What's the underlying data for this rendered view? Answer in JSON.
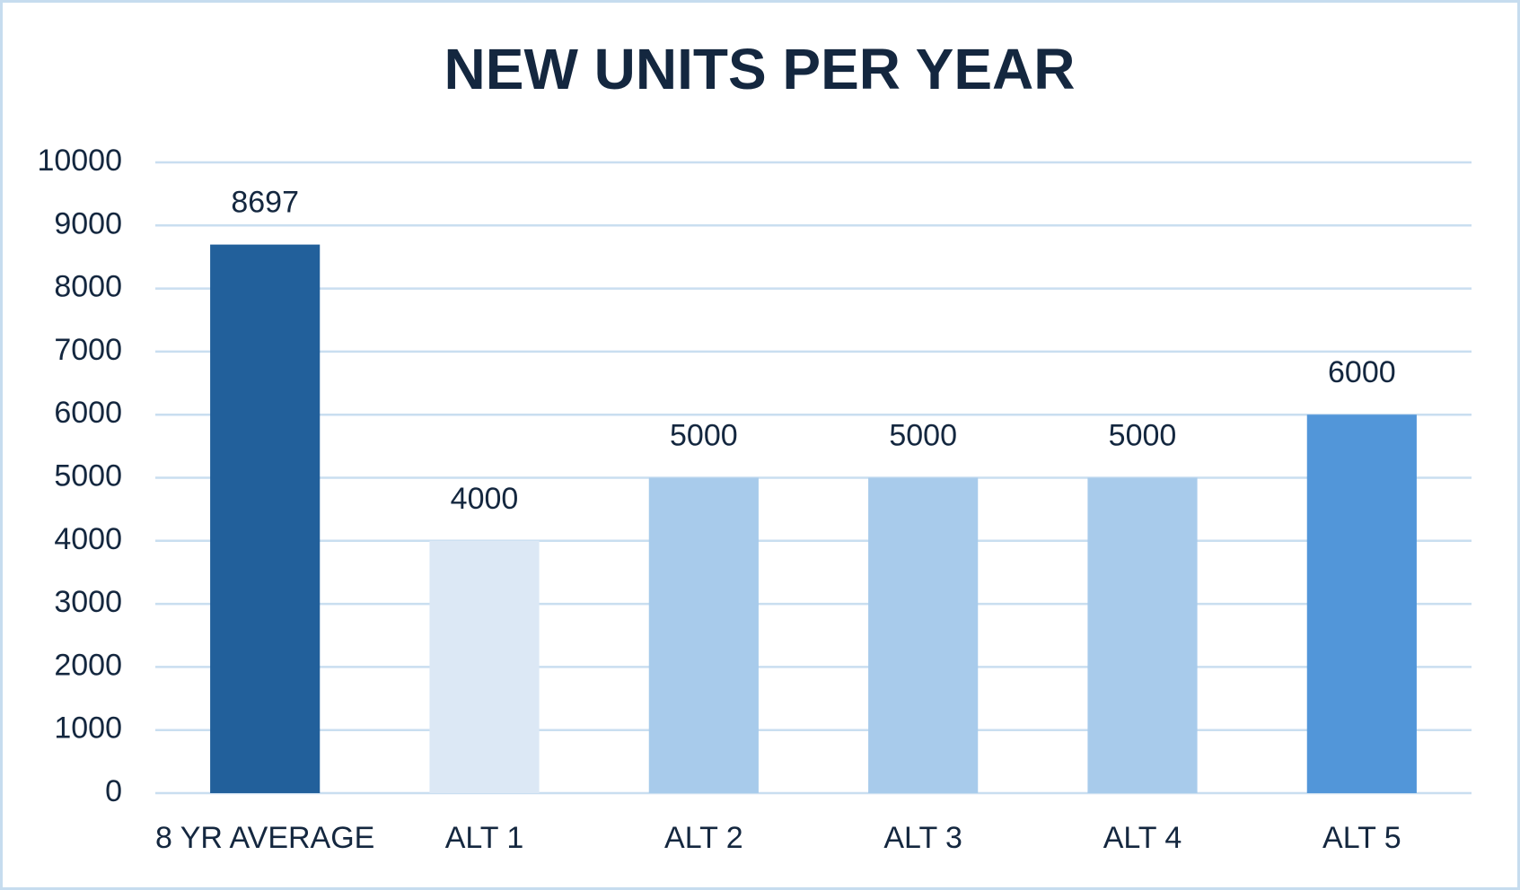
{
  "chart_data": {
    "type": "bar",
    "title": "NEW UNITS PER YEAR",
    "categories": [
      "8 YR AVERAGE",
      "ALT 1",
      "ALT 2",
      "ALT 3",
      "ALT 4",
      "ALT 5"
    ],
    "values": [
      8697,
      4000,
      5000,
      5000,
      5000,
      6000
    ],
    "colors": [
      "#22609b",
      "#dce8f5",
      "#a8cbeb",
      "#a8cbeb",
      "#a8cbeb",
      "#5296d9"
    ],
    "ylim": [
      0,
      10000
    ],
    "yticks": [
      0,
      1000,
      2000,
      3000,
      4000,
      5000,
      6000,
      7000,
      8000,
      9000,
      10000
    ],
    "grid": true
  }
}
